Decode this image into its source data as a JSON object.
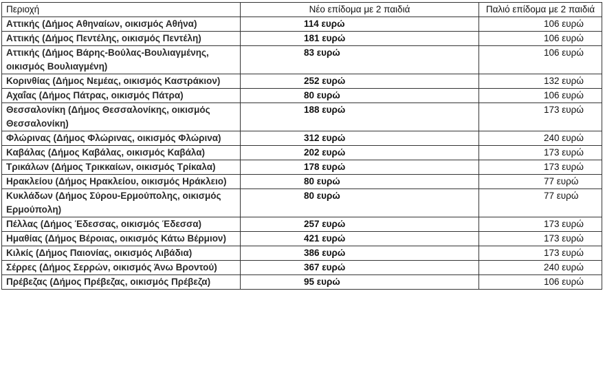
{
  "headers": [
    "Περιοχή",
    "Νέο επίδομα με 2 παιδιά",
    "Παλιό επίδομα με 2 παιδιά"
  ],
  "rows": [
    {
      "region": "Αττικής (Δήμος Αθηναίων, οικισμός Αθήνα)",
      "new": "114 ευρώ",
      "old": "106 ευρώ"
    },
    {
      "region": "Αττικής (Δήμος Πεντέλης, οικισμός Πεντέλη)",
      "new": "181 ευρώ",
      "old": "106 ευρώ"
    },
    {
      "region": "Αττικής (Δήμος Βάρης-Βούλας-Βουλιαγμένης, οικισμός Βουλιαγμένη)",
      "new": "83 ευρώ",
      "old": "106 ευρώ"
    },
    {
      "region": "Κορινθίας (Δήμος Νεμέας, οικισμός Καστράκιον)",
      "new": "252 ευρώ",
      "old": "132 ευρώ"
    },
    {
      "region": "Αχαΐας (Δήμος Πάτρας, οικισμός Πάτρα)",
      "new": "80 ευρώ",
      "old": "106 ευρώ"
    },
    {
      "region": "Θεσσαλονίκη (Δήμος Θεσσαλονίκης, οικισμός Θεσσαλονίκη)",
      "new": "188 ευρώ",
      "old": "173 ευρώ"
    },
    {
      "region": "Φλώρινας (Δήμος Φλώρινας, οικισμός Φλώρινα)",
      "new": "312 ευρώ",
      "old": "240 ευρώ"
    },
    {
      "region": "Καβάλας (Δήμος Καβάλας, οικισμός Καβάλα)",
      "new": "202 ευρώ",
      "old": "173 ευρώ"
    },
    {
      "region": "Τρικάλων (Δήμος Τρικκαίων, οικισμός Τρίκαλα)",
      "new": "178 ευρώ",
      "old": "173 ευρώ"
    },
    {
      "region": "Ηρακλείου (Δήμος Ηρακλείου, οικισμός Ηράκλειο)",
      "new": "80 ευρώ",
      "old": "77 ευρώ"
    },
    {
      "region": "Κυκλάδων (Δήμος Σύρου-Ερμούπολης, οικισμός Ερμούπολη)",
      "new": "80 ευρώ",
      "old": "77 ευρώ"
    },
    {
      "region": "Πέλλας (Δήμος Έδεσσας, οικισμός Έδεσσα)",
      "new": "257 ευρώ",
      "old": "173 ευρώ"
    },
    {
      "region": "Ημαθίας (Δήμος Βέροιας, οικισμός Κάτω Βέρμιον)",
      "new": "421 ευρώ",
      "old": "173 ευρώ"
    },
    {
      "region": "Κιλκίς (Δήμος Παιονίας, οικισμός Λιβάδια)",
      "new": "386 ευρώ",
      "old": "173 ευρώ"
    },
    {
      "region": "Σέρρες (Δήμος Σερρών, οικισμός Άνω Βροντού)",
      "new": "367 ευρώ",
      "old": "240 ευρώ"
    },
    {
      "region": "Πρέβεζας (Δήμος Πρέβεζας,  οικισμός Πρέβεζα)",
      "new": "95 ευρώ",
      "old": "106 ευρώ"
    }
  ]
}
